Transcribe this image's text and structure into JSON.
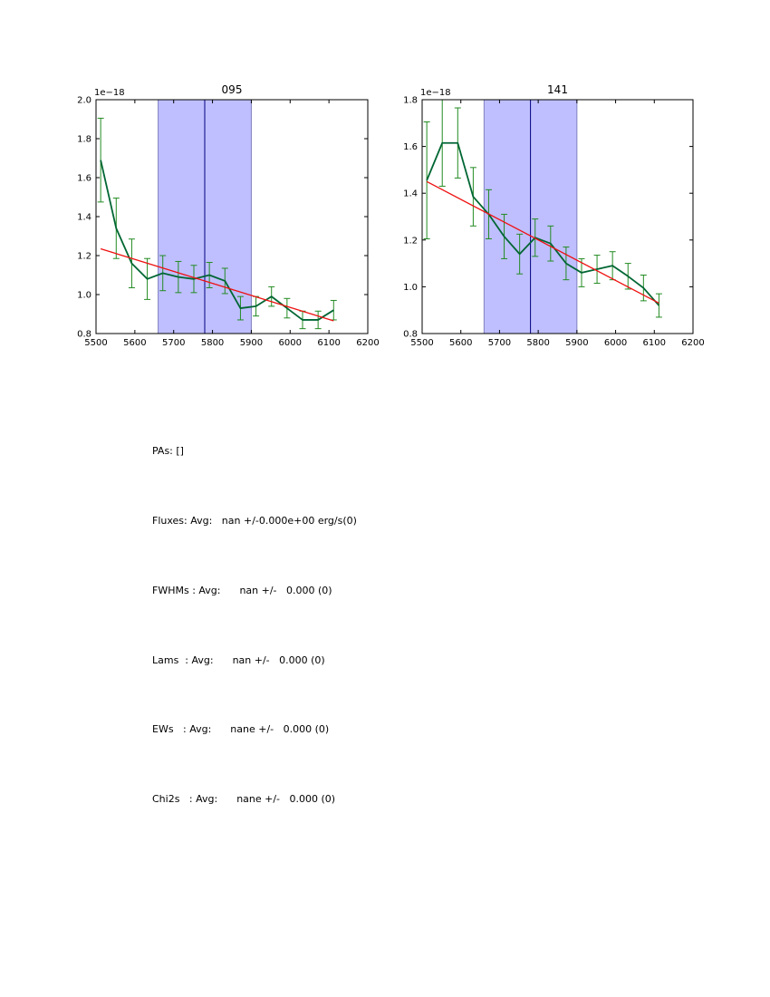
{
  "chart_data": [
    {
      "type": "line",
      "title": "095",
      "xlabel": "",
      "ylabel": "",
      "offset_label": "1e−18",
      "xlim": [
        5500,
        6200
      ],
      "ylim": [
        0.8,
        2.0
      ],
      "xticks": [
        "5500",
        "5600",
        "5700",
        "5800",
        "5900",
        "6000",
        "6100",
        "6200"
      ],
      "yticks": [
        "0.8",
        "1.0",
        "1.2",
        "1.4",
        "1.6",
        "1.8",
        "2.0"
      ],
      "shaded_band": [
        5660,
        5900
      ],
      "vertical_line": 5780,
      "series": [
        {
          "color": "#006633",
          "errorbar_color": "#228B22",
          "x": [
            5512,
            5552,
            5592,
            5632,
            5672,
            5712,
            5752,
            5792,
            5832,
            5872,
            5912,
            5952,
            5992,
            6032,
            6072,
            6112
          ],
          "y": [
            1.69,
            1.34,
            1.16,
            1.08,
            1.11,
            1.09,
            1.08,
            1.1,
            1.07,
            0.93,
            0.94,
            0.99,
            0.93,
            0.87,
            0.87,
            0.92
          ],
          "yerr": [
            0.215,
            0.155,
            0.125,
            0.105,
            0.09,
            0.08,
            0.07,
            0.065,
            0.065,
            0.06,
            0.05,
            0.05,
            0.05,
            0.045,
            0.045,
            0.05
          ]
        },
        {
          "color": "#ee1111",
          "x": [
            5512,
            6112
          ],
          "y": [
            1.235,
            0.865
          ]
        }
      ]
    },
    {
      "type": "line",
      "title": "141",
      "xlabel": "",
      "ylabel": "",
      "offset_label": "1e−18",
      "xlim": [
        5500,
        6200
      ],
      "ylim": [
        0.8,
        1.8
      ],
      "xticks": [
        "5500",
        "5600",
        "5700",
        "5800",
        "5900",
        "6000",
        "6100",
        "6200"
      ],
      "yticks": [
        "0.8",
        "1.0",
        "1.2",
        "1.4",
        "1.6",
        "1.8"
      ],
      "shaded_band": [
        5660,
        5900
      ],
      "vertical_line": 5780,
      "series": [
        {
          "color": "#006633",
          "errorbar_color": "#228B22",
          "x": [
            5512,
            5552,
            5592,
            5632,
            5672,
            5712,
            5752,
            5792,
            5832,
            5872,
            5912,
            5952,
            5992,
            6032,
            6072,
            6112
          ],
          "y": [
            1.455,
            1.615,
            1.615,
            1.385,
            1.31,
            1.215,
            1.14,
            1.21,
            1.185,
            1.1,
            1.06,
            1.075,
            1.09,
            1.045,
            0.995,
            0.92
          ],
          "yerr": [
            0.25,
            0.185,
            0.15,
            0.125,
            0.105,
            0.095,
            0.085,
            0.08,
            0.075,
            0.07,
            0.06,
            0.06,
            0.06,
            0.055,
            0.055,
            0.05
          ]
        },
        {
          "color": "#ee1111",
          "x": [
            5512,
            6112
          ],
          "y": [
            1.45,
            0.93
          ]
        }
      ]
    }
  ],
  "stats": {
    "pas": "PAs: []",
    "fluxes": "Fluxes: Avg:   nan +/-0.000e+00 erg/s(0)",
    "fwhms": "FWHMs : Avg:      nan +/-   0.000 (0)",
    "lams": "Lams  : Avg:      nan +/-   0.000 (0)",
    "ews": "EWs   : Avg:      nane +/-   0.000 (0)",
    "chi2s": "Chi2s   : Avg:      nane +/-   0.000 (0)"
  },
  "colors": {
    "band_fill": "#bfbfff",
    "band_edge": "#8080c0",
    "vline": "#000080"
  }
}
